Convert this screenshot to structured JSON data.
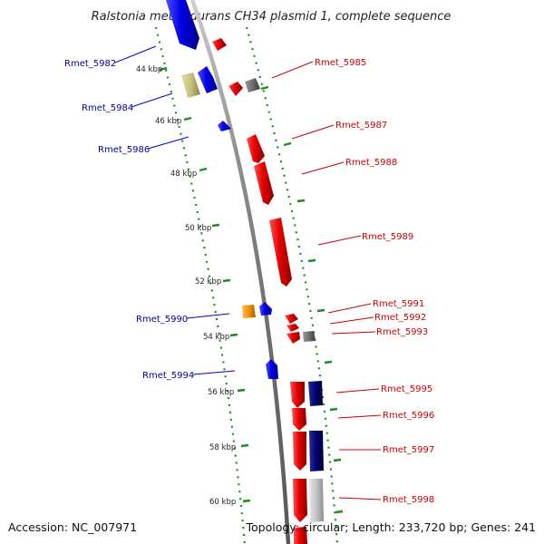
{
  "title": "Ralstonia metallidurans CH34 plasmid 1, complete sequence",
  "accession": "Accession: NC_007971",
  "summary": "Topology: circular; Length: 233,720 bp; Genes: 241",
  "colors": {
    "forward_gene": "#e60000",
    "reverse_gene": "#0000e6",
    "dark_reverse_gene": "#00006e",
    "grey_gene": "#6e6e6e",
    "light_grey_gene": "#c4c4c4",
    "khaki_gene": "#c7c07a",
    "orange_gene": "#f29200",
    "backbone": "#8c8c8c",
    "tick": "#1f8a1f",
    "forward_label": "#cc0000",
    "reverse_label": "#000099"
  },
  "kbp_ticks": [
    "44 kbp",
    "46 kbp",
    "48 kbp",
    "50 kbp",
    "52 kbp",
    "54 kbp",
    "56 kbp",
    "58 kbp",
    "60 kbp"
  ],
  "gene_labels": [
    {
      "name": "Rmet_5982",
      "strand": "reverse"
    },
    {
      "name": "Rmet_5984",
      "strand": "reverse"
    },
    {
      "name": "Rmet_5986",
      "strand": "reverse"
    },
    {
      "name": "Rmet_5990",
      "strand": "reverse"
    },
    {
      "name": "Rmet_5994",
      "strand": "reverse"
    },
    {
      "name": "Rmet_5985",
      "strand": "forward"
    },
    {
      "name": "Rmet_5987",
      "strand": "forward"
    },
    {
      "name": "Rmet_5988",
      "strand": "forward"
    },
    {
      "name": "Rmet_5989",
      "strand": "forward"
    },
    {
      "name": "Rmet_5991",
      "strand": "forward"
    },
    {
      "name": "Rmet_5992",
      "strand": "forward"
    },
    {
      "name": "Rmet_5993",
      "strand": "forward"
    },
    {
      "name": "Rmet_5995",
      "strand": "forward"
    },
    {
      "name": "Rmet_5996",
      "strand": "forward"
    },
    {
      "name": "Rmet_5997",
      "strand": "forward"
    },
    {
      "name": "Rmet_5998",
      "strand": "forward"
    }
  ]
}
